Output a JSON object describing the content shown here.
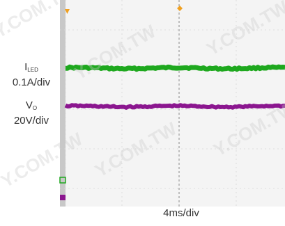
{
  "chart_data": {
    "type": "line",
    "series": [
      {
        "symbol": "I",
        "subscript": "LED",
        "scale": "0.1A/div",
        "color": "#1ea81e"
      },
      {
        "symbol": "V",
        "subscript": "O",
        "scale": "20V/div",
        "color": "#8b168f"
      }
    ],
    "xlabel": "4ms/div",
    "grid": true,
    "background": "#f4f4f4"
  },
  "watermark": "Y.COM.TW"
}
